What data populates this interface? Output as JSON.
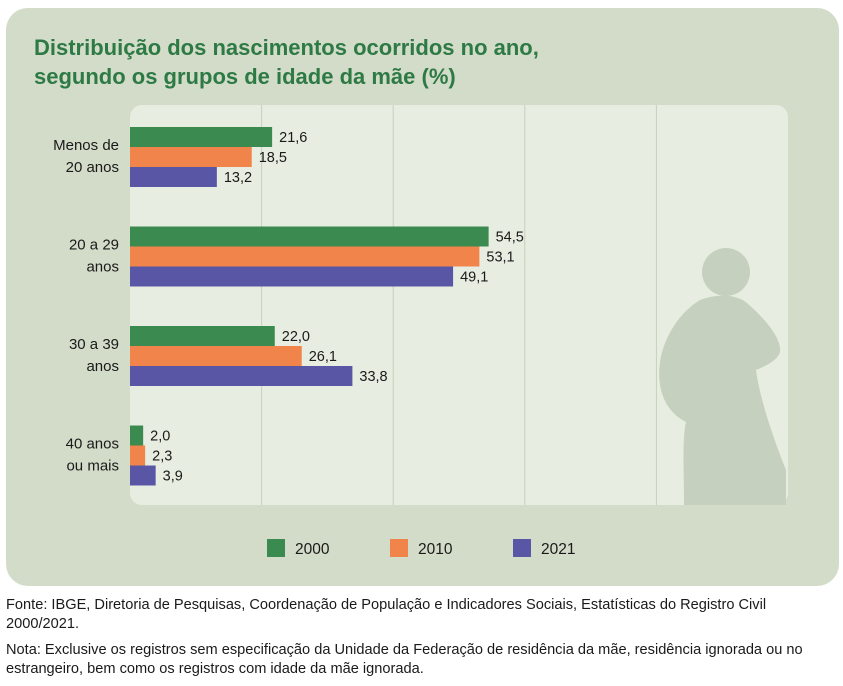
{
  "chart_data": {
    "type": "bar",
    "orientation": "horizontal",
    "title": "Distribuição dos nascimentos ocorridos no ano, segundo os grupos de idade da mãe (%)",
    "title_lines": [
      "Distribuição dos nascimentos ocorridos no ano,",
      "segundo os grupos de idade da mãe (%)"
    ],
    "categories": [
      {
        "lines": [
          "Menos de",
          "20 anos"
        ]
      },
      {
        "lines": [
          "20 a 29",
          "anos"
        ]
      },
      {
        "lines": [
          "30 a 39",
          "anos"
        ]
      },
      {
        "lines": [
          "40 anos",
          "ou mais"
        ]
      }
    ],
    "series": [
      {
        "name": "2000",
        "color": "#3b8a4f",
        "values": [
          21.6,
          54.5,
          22.0,
          2.0
        ],
        "labels": [
          "21,6",
          "54,5",
          "22,0",
          "2,0"
        ]
      },
      {
        "name": "2010",
        "color": "#f0844a",
        "values": [
          18.5,
          53.1,
          26.1,
          2.3
        ],
        "labels": [
          "18,5",
          "53,1",
          "26,1",
          "2,3"
        ]
      },
      {
        "name": "2021",
        "color": "#5a56a6",
        "values": [
          13.2,
          49.1,
          33.8,
          3.9
        ],
        "labels": [
          "13,2",
          "49,1",
          "33,8",
          "3,9"
        ]
      }
    ],
    "xlim": [
      0,
      100
    ],
    "grid": true,
    "legend_placement": "bottom",
    "colors": {
      "card": "#d3dcc9",
      "plot_area": "#e8ede1",
      "gridline": "#c6cfbc",
      "silhouette": "#c6d0be",
      "title": "#2e7a45"
    },
    "decoration_icon": "pregnant-woman-silhouette-icon"
  },
  "notes": {
    "source": "Fonte: IBGE, Diretoria de Pesquisas, Coordenação de População e Indicadores Sociais, Estatísticas do Registro Civil 2000/2021.",
    "note": "Nota: Exclusive os registros sem especificação da Unidade da Federação de residência da mãe, residência ignorada ou no estrangeiro, bem como os registros com idade da mãe ignorada."
  }
}
